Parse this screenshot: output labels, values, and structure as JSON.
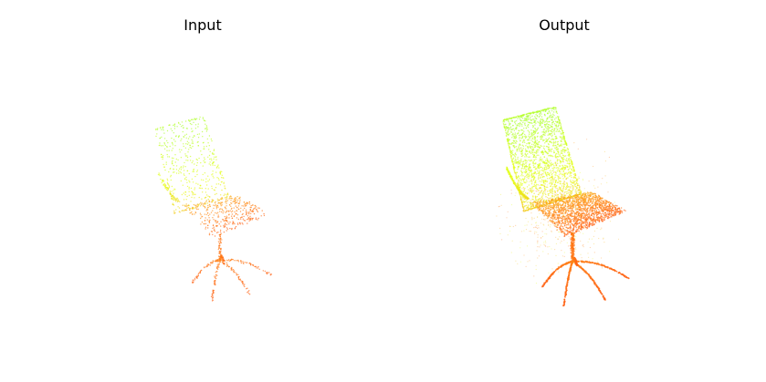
{
  "panels": [
    {
      "title": "Input"
    },
    {
      "title": "Output"
    }
  ],
  "colors": {
    "background": "#ffffff",
    "title_text": "#000000",
    "green": "#9cff3a",
    "yellow": "#e6ff1a",
    "orange": "#ff9a1a",
    "red_orange": "#ff5a14"
  }
}
